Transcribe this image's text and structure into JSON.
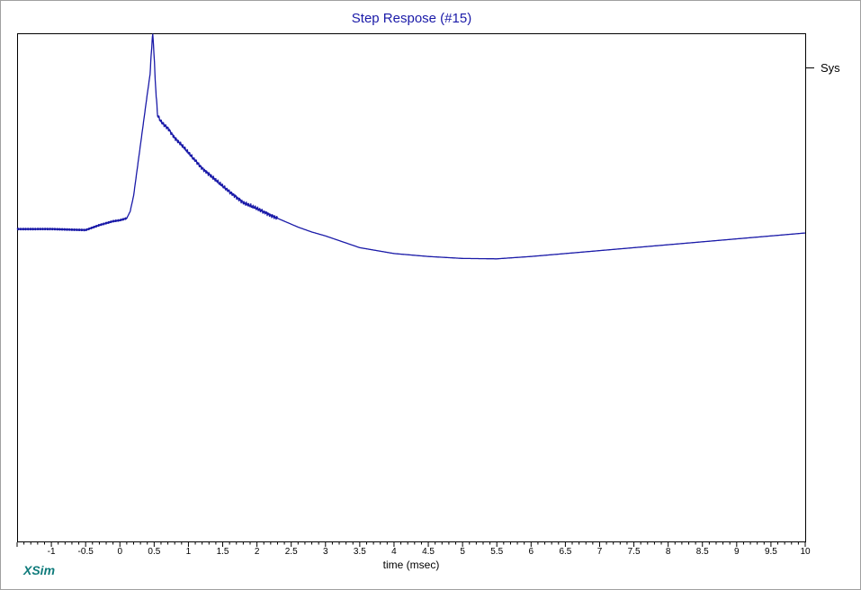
{
  "chart_data": {
    "type": "line",
    "title": "Step Respose (#15)",
    "xlabel": "time (msec)",
    "ylabel": "",
    "xlim": [
      -1.5,
      10
    ],
    "ylim": [
      -1.6,
      1.0
    ],
    "x_ticks": [
      "-1",
      "-0.5",
      "0",
      "0.5",
      "1",
      "1.5",
      "2",
      "2.5",
      "3",
      "3.5",
      "4",
      "4.5",
      "5",
      "5.5",
      "6",
      "6.5",
      "7",
      "7.5",
      "8",
      "8.5",
      "9",
      "9.5",
      "10"
    ],
    "grid": false,
    "legend": {
      "placement": "right",
      "entries": [
        "Sys"
      ]
    },
    "series": [
      {
        "name": "Sys",
        "color": "#1a1aa8",
        "x": [
          -1.5,
          -1.0,
          -0.5,
          -0.3,
          -0.1,
          0.0,
          0.1,
          0.15,
          0.2,
          0.25,
          0.3,
          0.35,
          0.4,
          0.44,
          0.46,
          0.48,
          0.5,
          0.52,
          0.55,
          0.6,
          0.65,
          0.7,
          0.8,
          0.9,
          1.0,
          1.2,
          1.4,
          1.6,
          1.8,
          2.0,
          2.2,
          2.4,
          2.6,
          2.8,
          3.0,
          3.5,
          4.0,
          4.5,
          5.0,
          5.5,
          6.0,
          6.5,
          7.0,
          7.5,
          8.0,
          8.5,
          9.0,
          9.5,
          10.0
        ],
        "y": [
          0.0,
          0.0,
          -0.005,
          0.02,
          0.04,
          0.045,
          0.055,
          0.09,
          0.17,
          0.3,
          0.43,
          0.56,
          0.69,
          0.79,
          0.91,
          1.0,
          0.88,
          0.73,
          0.58,
          0.55,
          0.53,
          0.515,
          0.465,
          0.43,
          0.39,
          0.31,
          0.25,
          0.19,
          0.135,
          0.105,
          0.07,
          0.04,
          0.01,
          -0.015,
          -0.035,
          -0.095,
          -0.125,
          -0.14,
          -0.15,
          -0.152,
          -0.14,
          -0.125,
          -0.11,
          -0.095,
          -0.08,
          -0.065,
          -0.05,
          -0.035,
          -0.02
        ]
      }
    ]
  }
}
